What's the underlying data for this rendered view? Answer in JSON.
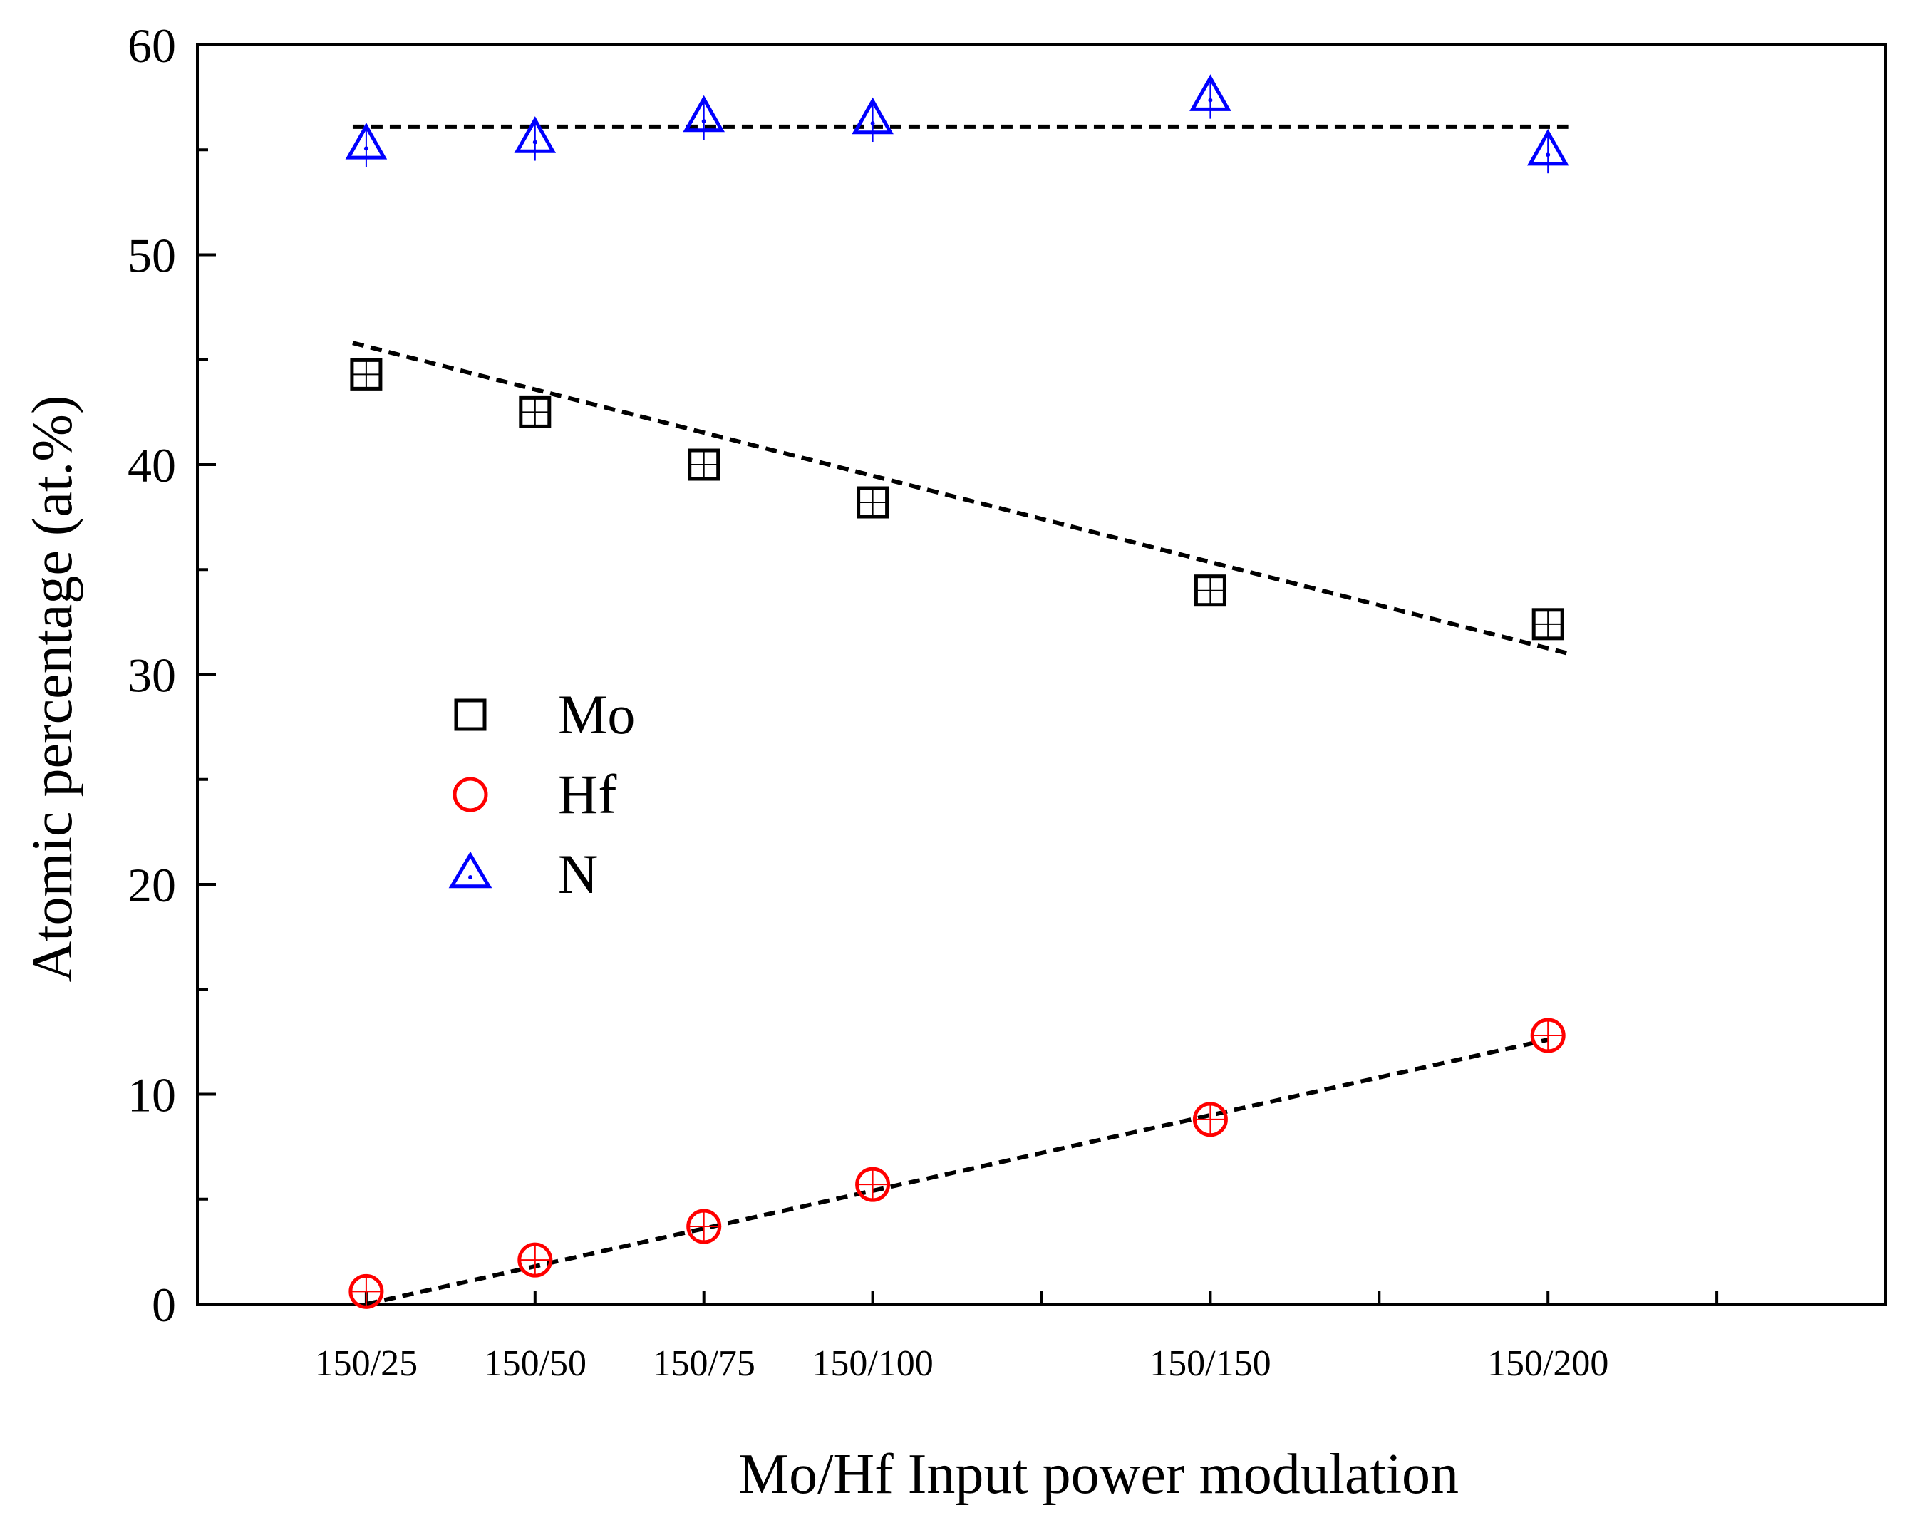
{
  "chart_data": {
    "type": "scatter",
    "title": "",
    "xlabel": "Mo/Hf Input power modulation",
    "ylabel": "Atomic percentage (at.%)",
    "x_axis": {
      "range": [
        0,
        200
      ],
      "minor_ticks": [
        0,
        25,
        50,
        75,
        100,
        125,
        150,
        175,
        200,
        225,
        250
      ],
      "labeled_ticks": [
        25,
        50,
        75,
        100,
        150,
        200
      ],
      "tick_labels": [
        "150/25",
        "150/50",
        "150/75",
        "150/100",
        "150/150",
        "150/200"
      ],
      "display_range": [
        0,
        250
      ]
    },
    "y_axis": {
      "range": [
        0,
        60
      ],
      "major_ticks": [
        0,
        10,
        20,
        30,
        40,
        50,
        60
      ],
      "tick_labels": [
        "0",
        "10",
        "20",
        "30",
        "40",
        "50",
        "60"
      ],
      "minor_ticks": [
        5,
        15,
        25,
        35,
        45,
        55
      ]
    },
    "x": [
      25,
      50,
      75,
      100,
      150,
      200
    ],
    "series": [
      {
        "name": "Mo",
        "marker": "square",
        "color": "#000000",
        "values": [
          44.3,
          42.5,
          40.0,
          38.2,
          34.0,
          32.4
        ],
        "fit": {
          "x": [
            23,
            203
          ],
          "y": [
            45.8,
            31.0
          ]
        }
      },
      {
        "name": "Hf",
        "marker": "circle",
        "color": "#ff0000",
        "values": [
          0.6,
          2.1,
          3.7,
          5.7,
          8.8,
          12.8
        ],
        "fit": {
          "x": [
            25,
            200
          ],
          "y": [
            0.0,
            12.6
          ]
        }
      },
      {
        "name": "N",
        "marker": "triangle",
        "color": "#0000ff",
        "values": [
          55.2,
          55.5,
          56.5,
          56.4,
          57.5,
          54.9
        ],
        "fit": {
          "x": [
            23,
            203
          ],
          "y": [
            56.1,
            56.1
          ]
        }
      }
    ],
    "legend": {
      "position": "center-left",
      "entries": [
        "Mo",
        "Hf",
        "N"
      ]
    },
    "grid": false
  }
}
